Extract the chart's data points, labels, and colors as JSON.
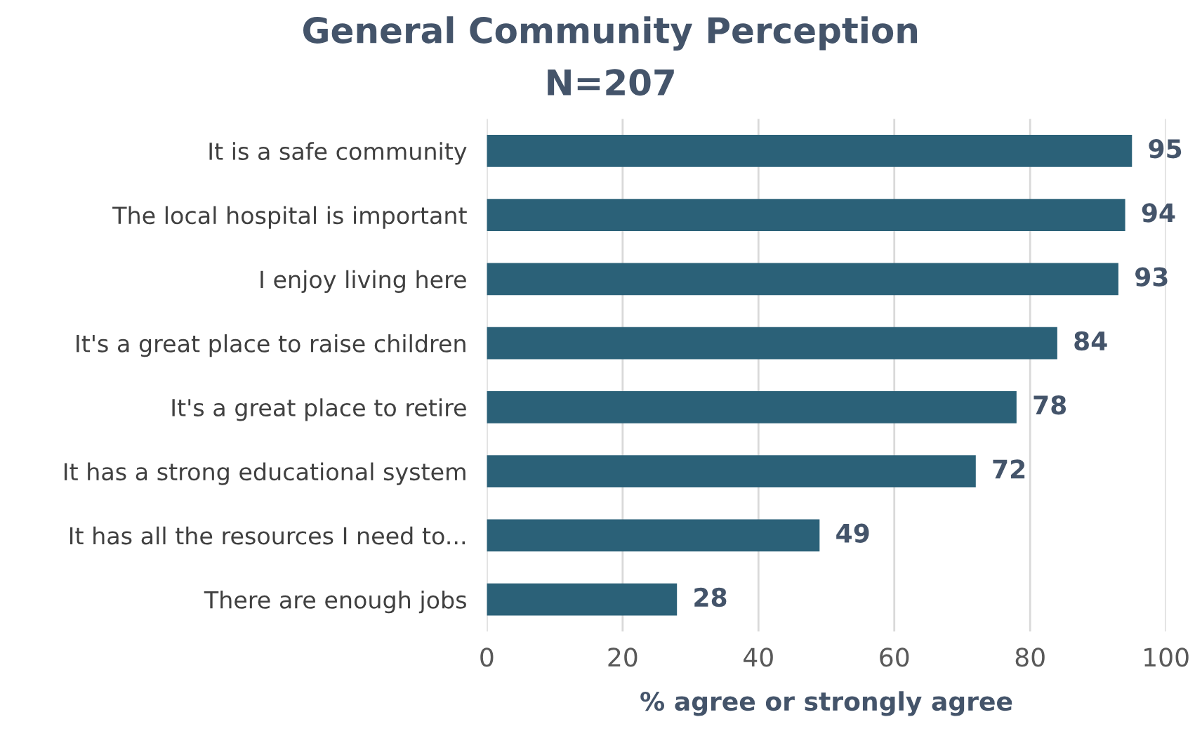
{
  "chart_data": {
    "type": "bar",
    "orientation": "horizontal",
    "title": "General Community Perception",
    "subtitle": "N=207",
    "xlabel": "% agree or strongly agree",
    "categories": [
      "It is a safe community",
      "The local hospital is important",
      "I enjoy living here",
      "It's a great place to raise children",
      "It's a great place to retire",
      "It has a strong educational system",
      "It has all the resources I need to...",
      "There are enough jobs"
    ],
    "values": [
      95,
      94,
      93,
      84,
      78,
      72,
      49,
      28
    ],
    "color": "#2b6178",
    "xlim": [
      0,
      100
    ],
    "xticks": [
      0,
      20,
      40,
      60,
      80,
      100
    ],
    "grid": "x",
    "data_labels": true
  }
}
